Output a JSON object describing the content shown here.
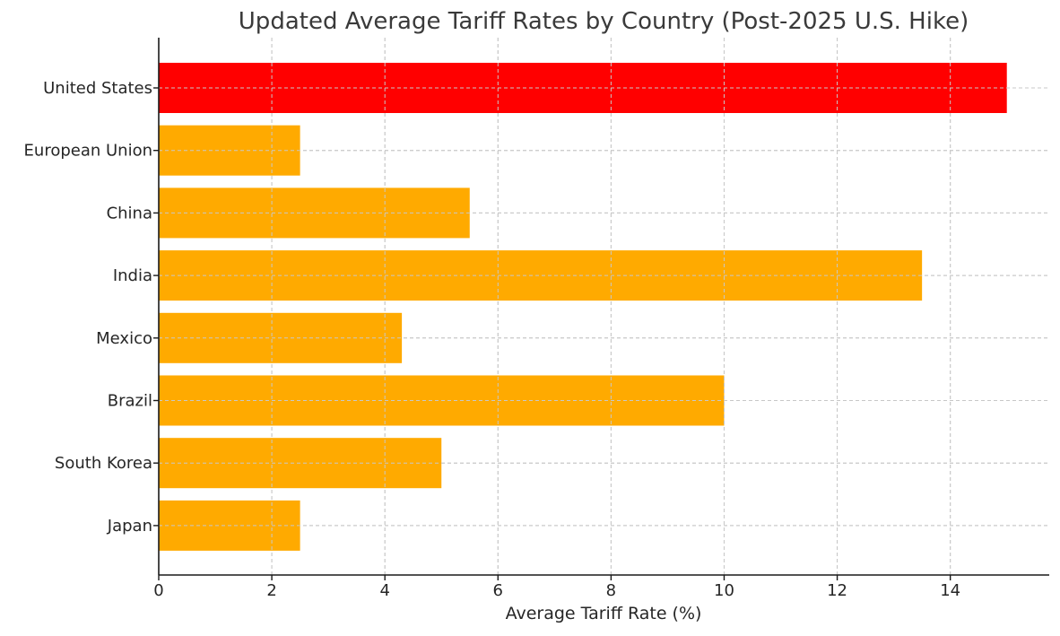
{
  "chart_data": {
    "type": "bar",
    "orientation": "horizontal",
    "title": "Updated Average Tariff Rates by Country (Post-2025 U.S. Hike)",
    "xlabel": "Average Tariff Rate (%)",
    "ylabel": "",
    "categories": [
      "United States",
      "European Union",
      "China",
      "India",
      "Mexico",
      "Brazil",
      "South Korea",
      "Japan"
    ],
    "values": [
      15.0,
      2.5,
      5.5,
      13.5,
      4.3,
      10.0,
      5.0,
      2.5
    ],
    "bar_colors": [
      "#ff0000",
      "#ffaa00",
      "#ffaa00",
      "#ffaa00",
      "#ffaa00",
      "#ffaa00",
      "#ffaa00",
      "#ffaa00"
    ],
    "xlim": [
      0,
      15.75
    ],
    "xticks": [
      0,
      2,
      4,
      6,
      8,
      10,
      12,
      14
    ],
    "grid": true,
    "legend": "none"
  }
}
